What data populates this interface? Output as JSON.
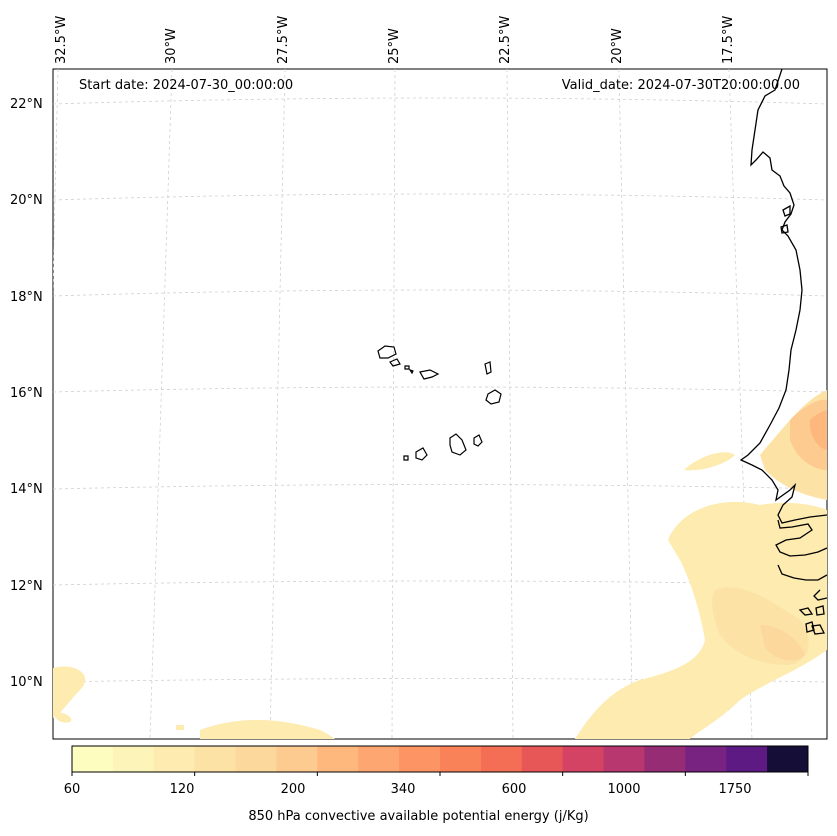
{
  "map": {
    "start_date": "Start date: 2024-07-30_00:00:00",
    "valid_date": "Valid_date: 2024-07-30T20:00:00.00",
    "lat_labels": [
      "22°N",
      "20°N",
      "18°N",
      "16°N",
      "14°N",
      "12°N",
      "10°N"
    ],
    "lon_labels": [
      "32.5°W",
      "30°W",
      "27.5°W",
      "25°W",
      "22.5°W",
      "20°W",
      "17.5°W"
    ],
    "coastline_color": "#000000",
    "grid_color": "#cfcfcf"
  },
  "colorbar": {
    "label": "850 hPa convective available potential energy (j/Kg)",
    "ticks": [
      "60",
      "120",
      "200",
      "340",
      "600",
      "1000",
      "1750"
    ],
    "colors": [
      "#fcfdbf",
      "#fcf4b8",
      "#fdebb0",
      "#fde2a6",
      "#fdd89c",
      "#fdca8f",
      "#feb87e",
      "#fea671",
      "#fd9463",
      "#fa8258",
      "#f36e55",
      "#e85758",
      "#d44363",
      "#b8376e",
      "#962c74",
      "#782281",
      "#5c1a82",
      "#150e37"
    ]
  }
}
